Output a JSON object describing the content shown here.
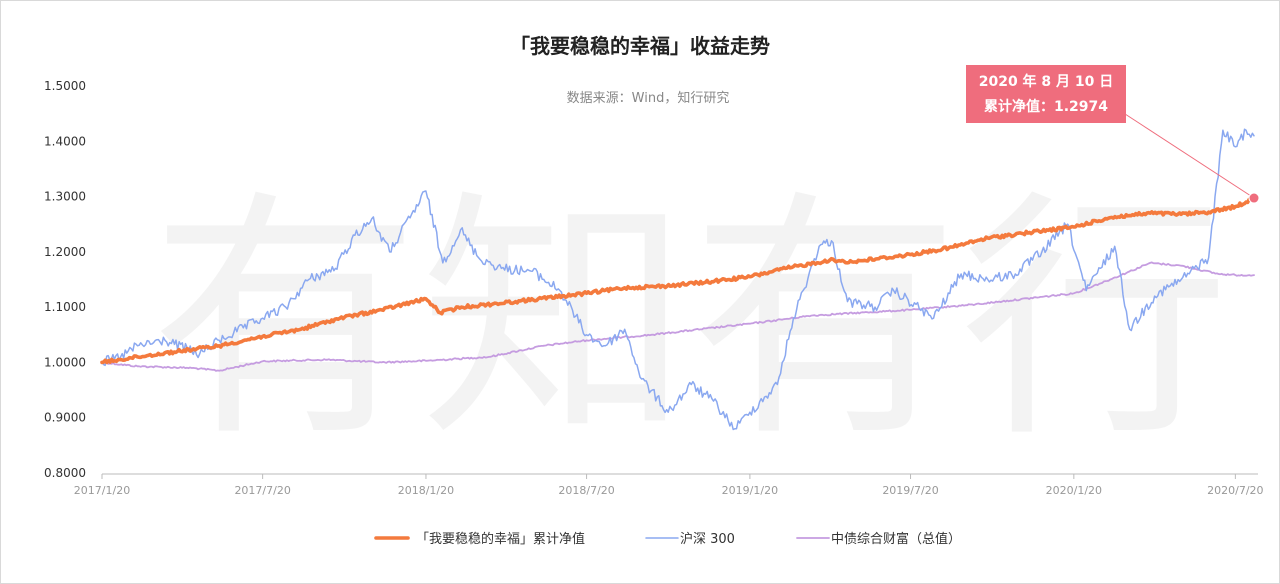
{
  "chart_data": {
    "type": "line",
    "title": "「我要稳稳的幸福」收益走势",
    "subtitle": "数据来源：Wind，知行研究",
    "watermark": "有知有行",
    "ylim": [
      0.8,
      1.5
    ],
    "y_ticks": [
      "0.8000",
      "0.9000",
      "1.0000",
      "1.1000",
      "1.2000",
      "1.3000",
      "1.4000",
      "1.5000"
    ],
    "x_ticks": [
      "2017/1/20",
      "2017/7/20",
      "2018/1/20",
      "2018/7/20",
      "2019/1/20",
      "2019/7/20",
      "2020/1/20",
      "2020/7/20"
    ],
    "x_range": [
      "2017/1/20",
      "2020/8/10"
    ],
    "grid": false,
    "legend_position": "bottom",
    "annotation": {
      "date_label": "2020 年 8 月 10 日",
      "value_label": "累计净值：1.2974",
      "x": "2020/8/10",
      "y": 1.2974
    },
    "series": [
      {
        "name": "「我要稳稳的幸福」累计净值",
        "color": "#f47a3d",
        "points": [
          [
            "2017/1/20",
            1.0
          ],
          [
            "2017/3/1",
            1.01
          ],
          [
            "2017/4/15",
            1.02
          ],
          [
            "2017/6/1",
            1.03
          ],
          [
            "2017/7/20",
            1.047
          ],
          [
            "2017/9/1",
            1.06
          ],
          [
            "2017/10/15",
            1.08
          ],
          [
            "2017/12/1",
            1.095
          ],
          [
            "2018/1/20",
            1.115
          ],
          [
            "2018/2/5",
            1.09
          ],
          [
            "2018/3/1",
            1.1
          ],
          [
            "2018/5/1",
            1.11
          ],
          [
            "2018/7/20",
            1.125
          ],
          [
            "2018/9/1",
            1.135
          ],
          [
            "2018/10/15",
            1.138
          ],
          [
            "2018/12/1",
            1.145
          ],
          [
            "2019/1/20",
            1.155
          ],
          [
            "2019/3/1",
            1.17
          ],
          [
            "2019/4/20",
            1.185
          ],
          [
            "2019/5/15",
            1.182
          ],
          [
            "2019/7/20",
            1.195
          ],
          [
            "2019/9/1",
            1.207
          ],
          [
            "2019/10/15",
            1.225
          ],
          [
            "2019/12/1",
            1.235
          ],
          [
            "2020/1/20",
            1.245
          ],
          [
            "2020/3/1",
            1.262
          ],
          [
            "2020/4/15",
            1.27
          ],
          [
            "2020/5/20",
            1.268
          ],
          [
            "2020/6/20",
            1.272
          ],
          [
            "2020/7/20",
            1.282
          ],
          [
            "2020/8/1",
            1.29
          ],
          [
            "2020/8/10",
            1.2974
          ]
        ]
      },
      {
        "name": "沪深 300",
        "color": "#8aa8f0",
        "points": [
          [
            "2017/1/20",
            1.0
          ],
          [
            "2017/2/10",
            1.01
          ],
          [
            "2017/3/1",
            1.03
          ],
          [
            "2017/4/1",
            1.04
          ],
          [
            "2017/5/10",
            1.015
          ],
          [
            "2017/6/1",
            1.04
          ],
          [
            "2017/7/20",
            1.08
          ],
          [
            "2017/8/15",
            1.1
          ],
          [
            "2017/9/10",
            1.15
          ],
          [
            "2017/10/10",
            1.17
          ],
          [
            "2017/11/1",
            1.23
          ],
          [
            "2017/11/20",
            1.26
          ],
          [
            "2017/12/10",
            1.2
          ],
          [
            "2018/1/20",
            1.31
          ],
          [
            "2018/2/8",
            1.18
          ],
          [
            "2018/2/28",
            1.24
          ],
          [
            "2018/3/20",
            1.19
          ],
          [
            "2018/4/15",
            1.17
          ],
          [
            "2018/5/20",
            1.165
          ],
          [
            "2018/6/20",
            1.13
          ],
          [
            "2018/7/20",
            1.05
          ],
          [
            "2018/8/10",
            1.03
          ],
          [
            "2018/9/1",
            1.06
          ],
          [
            "2018/9/20",
            0.97
          ],
          [
            "2018/10/20",
            0.91
          ],
          [
            "2018/11/15",
            0.96
          ],
          [
            "2018/12/10",
            0.93
          ],
          [
            "2019/1/3",
            0.88
          ],
          [
            "2019/1/20",
            0.91
          ],
          [
            "2019/2/20",
            0.96
          ],
          [
            "2019/3/10",
            1.08
          ],
          [
            "2019/4/8",
            1.21
          ],
          [
            "2019/4/22",
            1.22
          ],
          [
            "2019/5/10",
            1.11
          ],
          [
            "2019/6/10",
            1.1
          ],
          [
            "2019/7/1",
            1.13
          ],
          [
            "2019/8/15",
            1.08
          ],
          [
            "2019/9/15",
            1.16
          ],
          [
            "2019/10/15",
            1.15
          ],
          [
            "2019/11/15",
            1.16
          ],
          [
            "2019/12/15",
            1.2
          ],
          [
            "2020/1/13",
            1.25
          ],
          [
            "2020/2/3",
            1.13
          ],
          [
            "2020/3/6",
            1.21
          ],
          [
            "2020/3/23",
            1.06
          ],
          [
            "2020/4/20",
            1.12
          ],
          [
            "2020/5/20",
            1.15
          ],
          [
            "2020/6/20",
            1.19
          ],
          [
            "2020/7/6",
            1.42
          ],
          [
            "2020/7/20",
            1.39
          ],
          [
            "2020/8/1",
            1.42
          ],
          [
            "2020/8/10",
            1.41
          ]
        ]
      },
      {
        "name": "中债综合财富（总值）",
        "color": "#c59ce0",
        "points": [
          [
            "2017/1/20",
            1.0
          ],
          [
            "2017/3/1",
            0.993
          ],
          [
            "2017/5/1",
            0.99
          ],
          [
            "2017/6/1",
            0.985
          ],
          [
            "2017/7/20",
            1.002
          ],
          [
            "2017/10/1",
            1.005
          ],
          [
            "2017/12/1",
            1.0
          ],
          [
            "2018/1/20",
            1.003
          ],
          [
            "2018/4/1",
            1.01
          ],
          [
            "2018/6/1",
            1.03
          ],
          [
            "2018/7/20",
            1.04
          ],
          [
            "2018/10/1",
            1.05
          ],
          [
            "2019/1/20",
            1.07
          ],
          [
            "2019/4/1",
            1.085
          ],
          [
            "2019/7/20",
            1.095
          ],
          [
            "2019/10/1",
            1.105
          ],
          [
            "2020/1/20",
            1.125
          ],
          [
            "2020/3/1",
            1.15
          ],
          [
            "2020/4/15",
            1.18
          ],
          [
            "2020/5/20",
            1.175
          ],
          [
            "2020/7/1",
            1.16
          ],
          [
            "2020/7/20",
            1.158
          ],
          [
            "2020/8/10",
            1.158
          ]
        ]
      }
    ]
  }
}
